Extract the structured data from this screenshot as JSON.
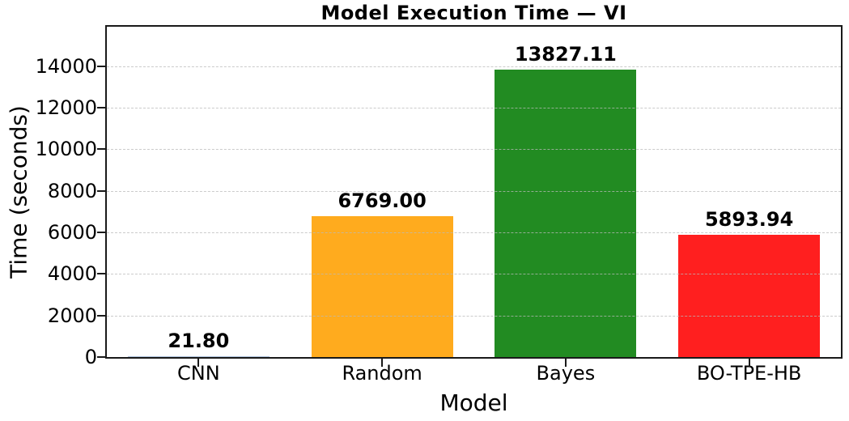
{
  "chart_data": {
    "type": "bar",
    "title": "Model Execution Time — VI",
    "xlabel": "Model",
    "ylabel": "Time (seconds)",
    "categories": [
      "CNN",
      "Random",
      "Bayes",
      "BO-TPE-HB"
    ],
    "values": [
      21.8,
      6769.0,
      13827.11,
      5893.94
    ],
    "value_labels": [
      "21.80",
      "6769.00",
      "13827.11",
      "5893.94"
    ],
    "bar_colors": [
      "#b0c4de",
      "#ffab1e",
      "#228b22",
      "#ff1f1f"
    ],
    "ylim": [
      0,
      15900
    ],
    "yticks": [
      0,
      2000,
      4000,
      6000,
      8000,
      10000,
      12000,
      14000
    ],
    "grid": "horizontal-dashed",
    "legend": "none",
    "frame": "full-box",
    "text_color": "#000000",
    "spine_color": "#1a1a1a"
  }
}
